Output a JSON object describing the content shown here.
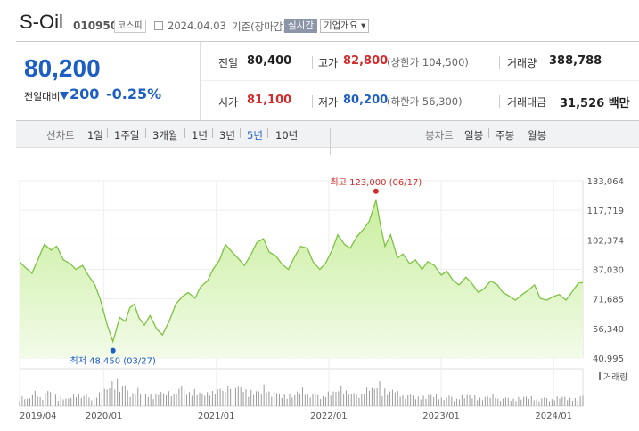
{
  "header": {
    "name": "S-Oil",
    "code": "010950",
    "market_badge": "코스피",
    "date": "2024.04.03",
    "basis": "기준(장마감)",
    "live_label": "실시간",
    "company_label": "기업개요"
  },
  "price": {
    "current": "80,200",
    "change_label": "전일대비",
    "change_value": "200",
    "change_pct": "-0.25%",
    "color_down": "#1d5ec3",
    "color_up": "#d02c2c"
  },
  "stats": {
    "prev_label": "전일",
    "prev_value": "80,400",
    "high_label": "고가",
    "high_value": "82,800",
    "upper_limit": "(상한가 104,500)",
    "volume_label": "거래량",
    "volume_value": "388,788",
    "open_label": "시가",
    "open_value": "81,100",
    "low_label": "저가",
    "low_value": "80,200",
    "lower_limit": "(하한가 56,300)",
    "amount_label": "거래대금",
    "amount_value": "31,526 백만"
  },
  "toolbar": {
    "line_label": "선차트",
    "periods": [
      "1일",
      "1주일",
      "3개월",
      "1년",
      "3년",
      "5년",
      "10년"
    ],
    "active_period": "5년",
    "candle_label": "봉차트",
    "candles": [
      "일봉",
      "주봉",
      "월봉"
    ]
  },
  "chart_data": {
    "type": "area",
    "y_ticks": [
      133064,
      117719,
      102374,
      87030,
      71685,
      56340,
      40995
    ],
    "y_tick_labels": [
      "133,064",
      "117,719",
      "102,374",
      "87,030",
      "71,685",
      "56,340",
      "40,995"
    ],
    "ylim": [
      40995,
      133064
    ],
    "x_tick_labels": [
      "2019/04",
      "2020/01",
      "2021/01",
      "2022/01",
      "2023/01",
      "2024/01"
    ],
    "x_ticks": [
      2019.25,
      2020.0,
      2021.0,
      2022.0,
      2023.0,
      2024.0
    ],
    "xlim": [
      2019.25,
      2024.26
    ],
    "series": [
      {
        "x": [
          2019.25,
          2019.3,
          2019.36,
          2019.42,
          2019.47,
          2019.53,
          2019.58,
          2019.64,
          2019.7,
          2019.75,
          2019.81,
          2019.86,
          2019.92,
          2019.97,
          2020.03,
          2020.08,
          2020.14,
          2020.19,
          2020.23,
          2020.27,
          2020.31,
          2020.36,
          2020.41,
          2020.47,
          2020.52,
          2020.58,
          2020.64,
          2020.7,
          2020.75,
          2020.81,
          2020.86,
          2020.92,
          2020.97,
          2021.03,
          2021.08,
          2021.14,
          2021.19,
          2021.25,
          2021.31,
          2021.36,
          2021.42,
          2021.47,
          2021.53,
          2021.58,
          2021.64,
          2021.7,
          2021.75,
          2021.81,
          2021.86,
          2021.92,
          2021.97,
          2022.03,
          2022.08,
          2022.14,
          2022.19,
          2022.25,
          2022.31,
          2022.36,
          2022.42,
          2022.46,
          2022.5,
          2022.55,
          2022.61,
          2022.66,
          2022.72,
          2022.77,
          2022.83,
          2022.88,
          2022.94,
          2023.0,
          2023.05,
          2023.11,
          2023.16,
          2023.22,
          2023.27,
          2023.33,
          2023.38,
          2023.44,
          2023.5,
          2023.55,
          2023.61,
          2023.66,
          2023.72,
          2023.77,
          2023.83,
          2023.88,
          2023.94,
          2024.0,
          2024.05,
          2024.11,
          2024.16,
          2024.22,
          2024.26
        ],
        "y": [
          91000,
          88000,
          85000,
          93000,
          100000,
          97000,
          99000,
          92000,
          90000,
          87000,
          89000,
          84000,
          79000,
          71000,
          58000,
          49500,
          62000,
          60000,
          67000,
          69000,
          62000,
          58000,
          63000,
          56000,
          53000,
          60000,
          69000,
          73000,
          75000,
          72000,
          78000,
          81000,
          87000,
          92000,
          100000,
          96000,
          93000,
          89000,
          95000,
          101000,
          103000,
          96000,
          94000,
          90000,
          87000,
          94000,
          99000,
          98000,
          91000,
          87000,
          90000,
          97000,
          105000,
          100000,
          98000,
          104000,
          108000,
          112000,
          123000,
          110000,
          99000,
          105000,
          93000,
          95000,
          90000,
          92000,
          87000,
          91000,
          89000,
          84000,
          86000,
          81000,
          79000,
          83000,
          80000,
          75000,
          77000,
          81000,
          79000,
          75000,
          73000,
          71000,
          74000,
          76000,
          79000,
          72000,
          71000,
          73000,
          74000,
          71000,
          75000,
          80000,
          80200
        ],
        "volume": [
          22,
          18,
          30,
          25,
          35,
          28,
          20,
          18,
          24,
          30,
          26,
          22,
          28,
          40,
          55,
          65,
          48,
          42,
          38,
          35,
          32,
          30,
          28,
          34,
          30,
          32,
          45,
          40,
          36,
          32,
          30,
          38,
          42,
          40,
          55,
          50,
          45,
          38,
          36,
          34,
          42,
          38,
          30,
          28,
          26,
          34,
          38,
          32,
          28,
          26,
          30,
          34,
          45,
          38,
          30,
          34,
          36,
          42,
          58,
          40,
          35,
          38,
          30,
          28,
          26,
          24,
          22,
          26,
          24,
          22,
          24,
          20,
          22,
          26,
          24,
          20,
          22,
          24,
          22,
          20,
          18,
          20,
          22,
          20,
          18,
          20,
          18,
          20,
          22,
          18,
          20,
          24,
          22
        ]
      }
    ],
    "high_annotation": "최고 123,000 (06/17)",
    "low_annotation": "최저 48,450 (03/27)",
    "volume_legend": "거래량",
    "line_color": "#7dc242",
    "high_marker_color": "#d02c2c",
    "low_marker_color": "#1d5ec3"
  }
}
